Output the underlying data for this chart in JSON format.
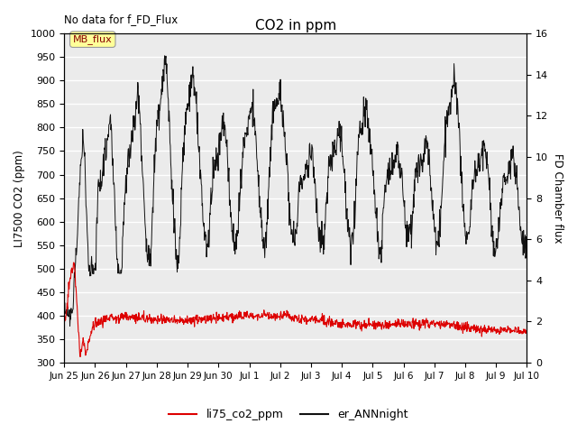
{
  "title": "CO2 in ppm",
  "top_left_text": "No data for f_FD_Flux",
  "ylabel_left": "LI7500 CO2 (ppm)",
  "ylabel_right": "FD Chamber flux",
  "ylim_left": [
    300,
    1000
  ],
  "ylim_right": [
    0,
    16
  ],
  "yticks_left": [
    300,
    350,
    400,
    450,
    500,
    550,
    600,
    650,
    700,
    750,
    800,
    850,
    900,
    950,
    1000
  ],
  "yticks_right": [
    0,
    2,
    4,
    6,
    8,
    10,
    12,
    14,
    16
  ],
  "xtick_labels": [
    "Jun 25",
    "Jun 26",
    "Jun 27",
    "Jun 28",
    "Jun 29",
    "Jun 30",
    "Jul 1",
    "Jul 2",
    "Jul 3",
    "Jul 4",
    "Jul 5",
    "Jul 6",
    "Jul 7",
    "Jul 8",
    "Jul 9",
    "Jul 10"
  ],
  "legend_entries": [
    "li75_co2_ppm",
    "er_ANNnight"
  ],
  "legend_colors": [
    "#dd0000",
    "#111111"
  ],
  "mb_flux_box_color": "#ffff99",
  "mb_flux_text_color": "#880000",
  "background_color": "#ebebeb",
  "grid_color": "#ffffff",
  "line1_color": "#dd0000",
  "line2_color": "#111111"
}
